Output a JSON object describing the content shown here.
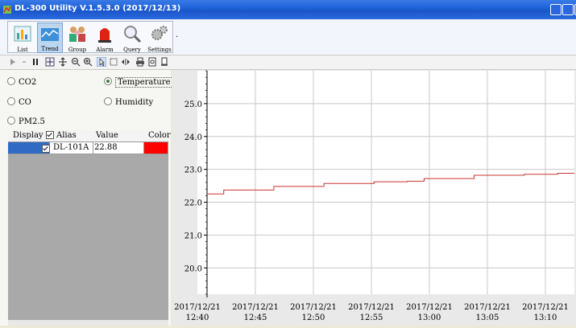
{
  "window": {
    "title": "DL-300 Utility V.1.5.3.0 (2017/12/13)"
  },
  "toolbar": {
    "buttons": [
      {
        "label": "List",
        "icon": "list-icon"
      },
      {
        "label": "Trend",
        "icon": "trend-icon"
      },
      {
        "label": "Group",
        "icon": "group-icon"
      },
      {
        "label": "Alarm",
        "icon": "alarm-icon"
      },
      {
        "label": "Query",
        "icon": "query-icon"
      },
      {
        "label": "Settings",
        "icon": "settings-icon"
      }
    ],
    "overflow": "."
  },
  "sensors": {
    "co2": "CO2",
    "temperature": "Temperature",
    "co": "CO",
    "humidity": "Humidity",
    "pm25": "PM2.5",
    "selected": "Temperature"
  },
  "grid": {
    "headers": {
      "display": "Display",
      "alias": "Alias",
      "value": "Value",
      "color": "Color"
    },
    "rows": [
      {
        "alias": "DL-101A",
        "value": "22.88",
        "color": "#ff0000",
        "checked": true
      }
    ]
  },
  "chart_data": {
    "type": "line",
    "y_ticks": [
      "20.0",
      "21.0",
      "22.0",
      "23.0",
      "24.0",
      "25.0"
    ],
    "ylim": [
      19.2,
      26.0
    ],
    "x_ticks": [
      [
        "2017/12/21",
        "12:40"
      ],
      [
        "2017/12/21",
        "12:45"
      ],
      [
        "2017/12/21",
        "12:50"
      ],
      [
        "2017/12/21",
        "12:55"
      ],
      [
        "2017/12/21",
        "13:00"
      ],
      [
        "2017/12/21",
        "13:05"
      ],
      [
        "2017/12/21",
        "13:10"
      ]
    ],
    "series": [
      {
        "color": "#cc3333",
        "values": [
          22.25,
          22.37,
          22.37,
          22.37,
          22.48,
          22.48,
          22.48,
          22.57,
          22.57,
          22.57,
          22.62,
          22.62,
          22.64,
          22.72,
          22.72,
          22.72,
          22.82,
          22.82,
          22.82,
          22.85,
          22.85,
          22.88,
          22.88
        ]
      }
    ],
    "grid": true
  }
}
